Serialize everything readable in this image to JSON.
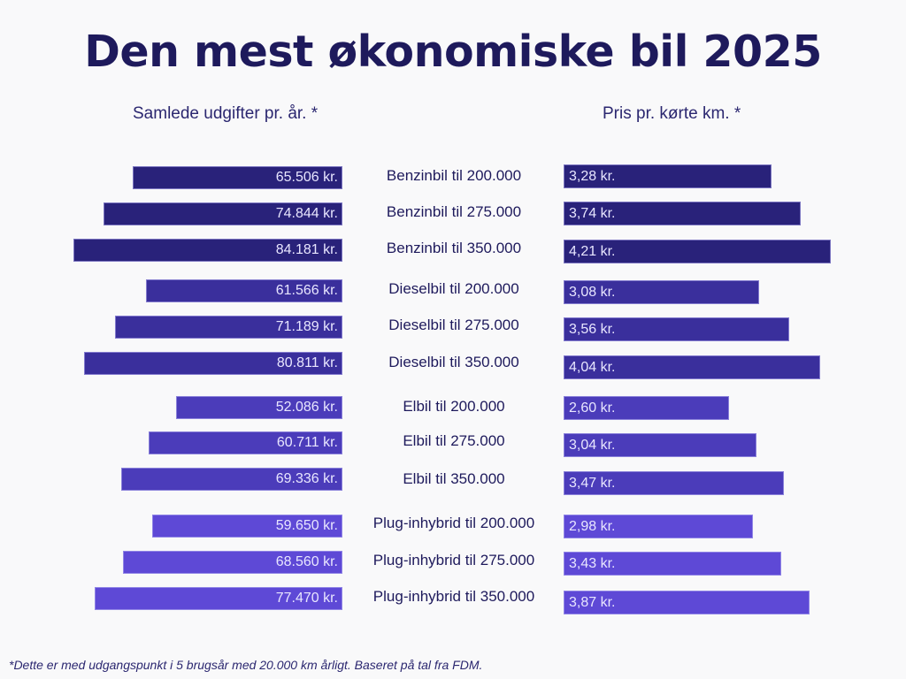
{
  "chart_data": {
    "type": "bar",
    "title": "Den mest økonomiske bil 2025",
    "left_label": "Samlede udgifter pr. år. *",
    "right_label": "Pris pr. kørte km. *",
    "footnote": "*Dette er med udgangspunkt i 5 brugsår med 20.000 km årligt. Baseret på tal fra FDM.",
    "categories": [
      "Benzinbil til 200.000",
      "Benzinbil til 275.000",
      "Benzinbil til 350.000",
      "Dieselbil til 200.000",
      "Dieselbil til 275.000",
      "Dieselbil til 350.000",
      "Elbil til 200.000",
      "Elbil til 275.000",
      "Elbil til 350.000",
      "Plug-inhybrid til 200.000",
      "Plug-inhybrid til 275.000",
      "Plug-inhybrid til 350.000"
    ],
    "series": [
      {
        "name": "Samlede udgifter pr. år",
        "values": [
          65506,
          74844,
          84181,
          61566,
          71189,
          80811,
          52086,
          60711,
          69336,
          59650,
          68560,
          77470
        ],
        "labels": [
          "65.506 kr.",
          "74.844 kr.",
          "84.181 kr.",
          "61.566 kr.",
          "71.189 kr.",
          "80.811 kr.",
          "52.086 kr.",
          "60.711 kr.",
          "69.336 kr.",
          "59.650 kr.",
          "68.560 kr.",
          "77.470 kr."
        ]
      },
      {
        "name": "Pris pr. kørte km",
        "values": [
          3.28,
          3.74,
          4.21,
          3.08,
          3.56,
          4.04,
          2.6,
          3.04,
          3.47,
          2.98,
          3.43,
          3.87
        ],
        "labels": [
          "3,28 kr.",
          "3,74 kr.",
          "4,21 kr.",
          "3,08 kr.",
          "3,56 kr.",
          "4,04 kr.",
          "2,60 kr.",
          "3,04 kr.",
          "3,47 kr.",
          "2,98 kr.",
          "3,43 kr.",
          "3,87 kr."
        ]
      }
    ],
    "group_colors": [
      "#29227a",
      "#3a2f9c",
      "#4b3cba",
      "#5e49d6"
    ]
  }
}
